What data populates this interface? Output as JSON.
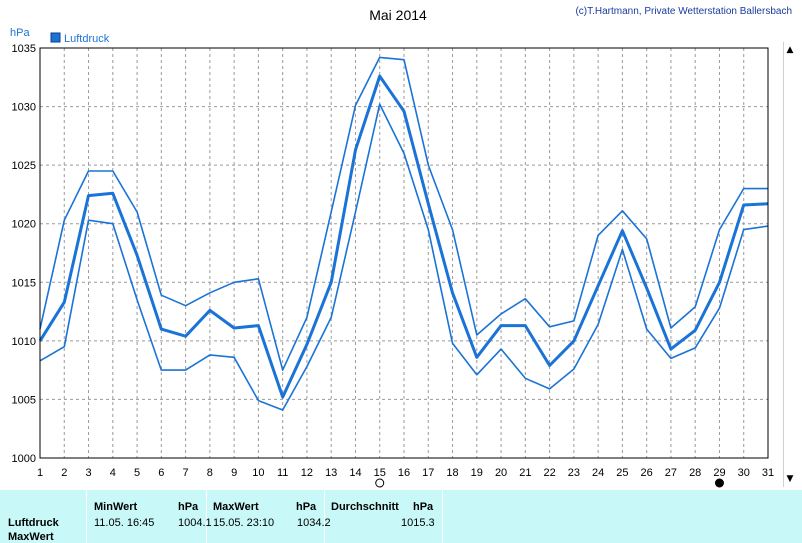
{
  "header": {
    "title": "Mai 2014",
    "credit": "(c)T.Hartmann, Private Wetterstation Ballersbach",
    "unit": "hPa",
    "legend": "Luftdruck"
  },
  "colors": {
    "series": "#1a73d6",
    "grid": "#9a9a9a",
    "panel": "#c8f8f8"
  },
  "chart_data": {
    "type": "line",
    "title": "Mai 2014",
    "ylabel": "hPa",
    "xlabel": "",
    "ylim": [
      1000,
      1035
    ],
    "yticks": [
      1000,
      1005,
      1010,
      1015,
      1020,
      1025,
      1030,
      1035
    ],
    "grid": true,
    "legend_position": "top-left",
    "categories": [
      "1",
      "2",
      "3",
      "4",
      "5",
      "6",
      "7",
      "8",
      "9",
      "10",
      "11",
      "12",
      "13",
      "14",
      "15",
      "16",
      "17",
      "18",
      "19",
      "20",
      "21",
      "22",
      "23",
      "24",
      "25",
      "26",
      "27",
      "28",
      "29",
      "30",
      "31"
    ],
    "series": [
      {
        "name": "Luftdruck",
        "style": "max",
        "values": [
          1011.0,
          1020.3,
          1024.5,
          1024.5,
          1021.0,
          1013.9,
          1013.0,
          1014.1,
          1015.0,
          1015.3,
          1007.5,
          1012.0,
          1021.0,
          1030.1,
          1034.2,
          1034.0,
          1025.0,
          1019.5,
          1010.5,
          1012.3,
          1013.6,
          1011.2,
          1011.7,
          1019.0,
          1021.1,
          1018.7,
          1011.1,
          1012.9,
          1019.5,
          1023.0,
          1023.0
        ]
      },
      {
        "name": "Luftdruck",
        "style": "mean",
        "values": [
          1010.0,
          1013.3,
          1022.4,
          1022.6,
          1017.3,
          1011.0,
          1010.4,
          1012.6,
          1011.1,
          1011.3,
          1005.2,
          1009.7,
          1015.0,
          1026.3,
          1032.6,
          1029.6,
          1021.7,
          1014.1,
          1008.6,
          1011.3,
          1011.3,
          1007.9,
          1010.0,
          1014.7,
          1019.4,
          1014.5,
          1009.3,
          1010.9,
          1015.0,
          1021.6,
          1021.7
        ]
      },
      {
        "name": "Luftdruck",
        "style": "min",
        "values": [
          1008.3,
          1009.5,
          1020.3,
          1020.0,
          1013.5,
          1007.5,
          1007.5,
          1008.8,
          1008.6,
          1004.9,
          1004.1,
          1007.8,
          1012.0,
          1021.0,
          1030.2,
          1026.0,
          1019.5,
          1009.8,
          1007.1,
          1009.3,
          1006.8,
          1005.9,
          1007.6,
          1011.4,
          1017.8,
          1011.0,
          1008.5,
          1009.4,
          1012.8,
          1019.5,
          1019.8
        ]
      }
    ],
    "markers": [
      {
        "category": "15",
        "shape": "open-circle"
      },
      {
        "category": "29",
        "shape": "filled-circle"
      }
    ]
  },
  "stats": {
    "row_label": "Luftdruck",
    "row2_label": "MaxWert",
    "min_header": "MinWert",
    "min_unit": "hPa",
    "min_time": "11.05.  16:45",
    "min_value": "1004.1",
    "max_header": "MaxWert",
    "max_unit": "hPa",
    "max_time": "15.05.  23:10",
    "max_value": "1034.2",
    "avg_header": "Durchschnitt",
    "avg_unit": "hPa",
    "avg_value": "1015.3"
  },
  "scrollbar": {
    "up": "▲",
    "down": "▼"
  }
}
